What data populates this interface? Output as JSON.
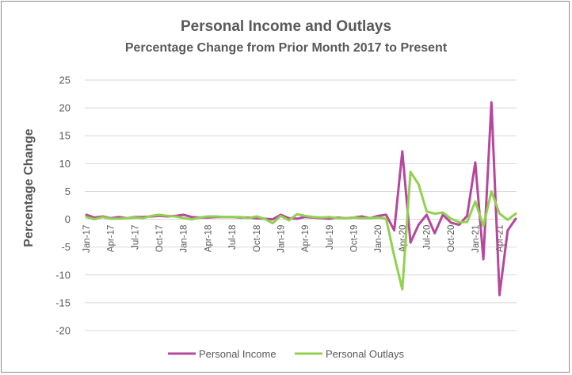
{
  "chart_data": {
    "type": "line",
    "title": "Personal Income and Outlays",
    "subtitle": "Percentage Change from Prior Month 2017 to Present",
    "xlabel": "",
    "ylabel": "Percentage Change",
    "ylim": [
      -20,
      25
    ],
    "yticks": [
      25,
      20,
      15,
      10,
      5,
      0,
      -5,
      -10,
      -15,
      -20
    ],
    "grid": true,
    "legend_position": "bottom",
    "x": [
      "Jan-17",
      "Feb-17",
      "Mar-17",
      "Apr-17",
      "May-17",
      "Jun-17",
      "Jul-17",
      "Aug-17",
      "Sep-17",
      "Oct-17",
      "Nov-17",
      "Dec-17",
      "Jan-18",
      "Feb-18",
      "Mar-18",
      "Apr-18",
      "May-18",
      "Jun-18",
      "Jul-18",
      "Aug-18",
      "Sep-18",
      "Oct-18",
      "Nov-18",
      "Dec-18",
      "Jan-19",
      "Feb-19",
      "Mar-19",
      "Apr-19",
      "May-19",
      "Jun-19",
      "Jul-19",
      "Aug-19",
      "Sep-19",
      "Oct-19",
      "Nov-19",
      "Dec-19",
      "Jan-20",
      "Feb-20",
      "Mar-20",
      "Apr-20",
      "May-20",
      "Jun-20",
      "Jul-20",
      "Aug-20",
      "Sep-20",
      "Oct-20",
      "Nov-20",
      "Dec-20",
      "Jan-21",
      "Feb-21",
      "Mar-21",
      "Apr-21",
      "May-21",
      "Jun-21"
    ],
    "x_tick_labels": [
      "Jan-17",
      "Apr-17",
      "Jul-17",
      "Oct-17",
      "Jan-18",
      "Apr-18",
      "Jul-18",
      "Oct-18",
      "Jan-19",
      "Apr-19",
      "Jul-19",
      "Oct-19",
      "Jan-20",
      "Apr-20",
      "Jul-20",
      "Oct-20",
      "Jan-21",
      "Apr-21"
    ],
    "series": [
      {
        "name": "Personal Income",
        "color": "#b5489c",
        "values": [
          0.8,
          0.3,
          0.5,
          0.2,
          0.4,
          0.2,
          0.4,
          0.4,
          0.5,
          0.6,
          0.5,
          0.6,
          0.8,
          0.4,
          0.3,
          0.3,
          0.4,
          0.4,
          0.4,
          0.3,
          0.3,
          0.2,
          0.1,
          0.0,
          0.8,
          0.2,
          0.1,
          0.4,
          0.3,
          0.2,
          0.1,
          0.3,
          0.2,
          0.3,
          0.5,
          0.2,
          0.6,
          0.8,
          -2.0,
          12.2,
          -4.2,
          -1.0,
          0.8,
          -2.5,
          0.8,
          -0.6,
          -1.0,
          0.6,
          10.2,
          -7.2,
          21.0,
          -13.6,
          -2.0,
          0.1
        ]
      },
      {
        "name": "Personal Outlays",
        "color": "#92d050",
        "values": [
          0.4,
          0.0,
          0.4,
          0.1,
          0.1,
          0.2,
          0.3,
          0.2,
          0.6,
          0.8,
          0.6,
          0.5,
          0.2,
          0.0,
          0.3,
          0.5,
          0.5,
          0.4,
          0.4,
          0.4,
          0.2,
          0.5,
          0.1,
          -0.7,
          0.6,
          -0.2,
          0.9,
          0.6,
          0.4,
          0.3,
          0.4,
          0.2,
          0.2,
          0.3,
          0.2,
          0.2,
          0.3,
          0.1,
          -6.6,
          -12.6,
          8.5,
          6.3,
          1.4,
          1.0,
          1.2,
          0.1,
          -0.5,
          -0.5,
          3.2,
          -1.2,
          5.0,
          1.0,
          -0.1,
          1.0
        ]
      }
    ]
  }
}
